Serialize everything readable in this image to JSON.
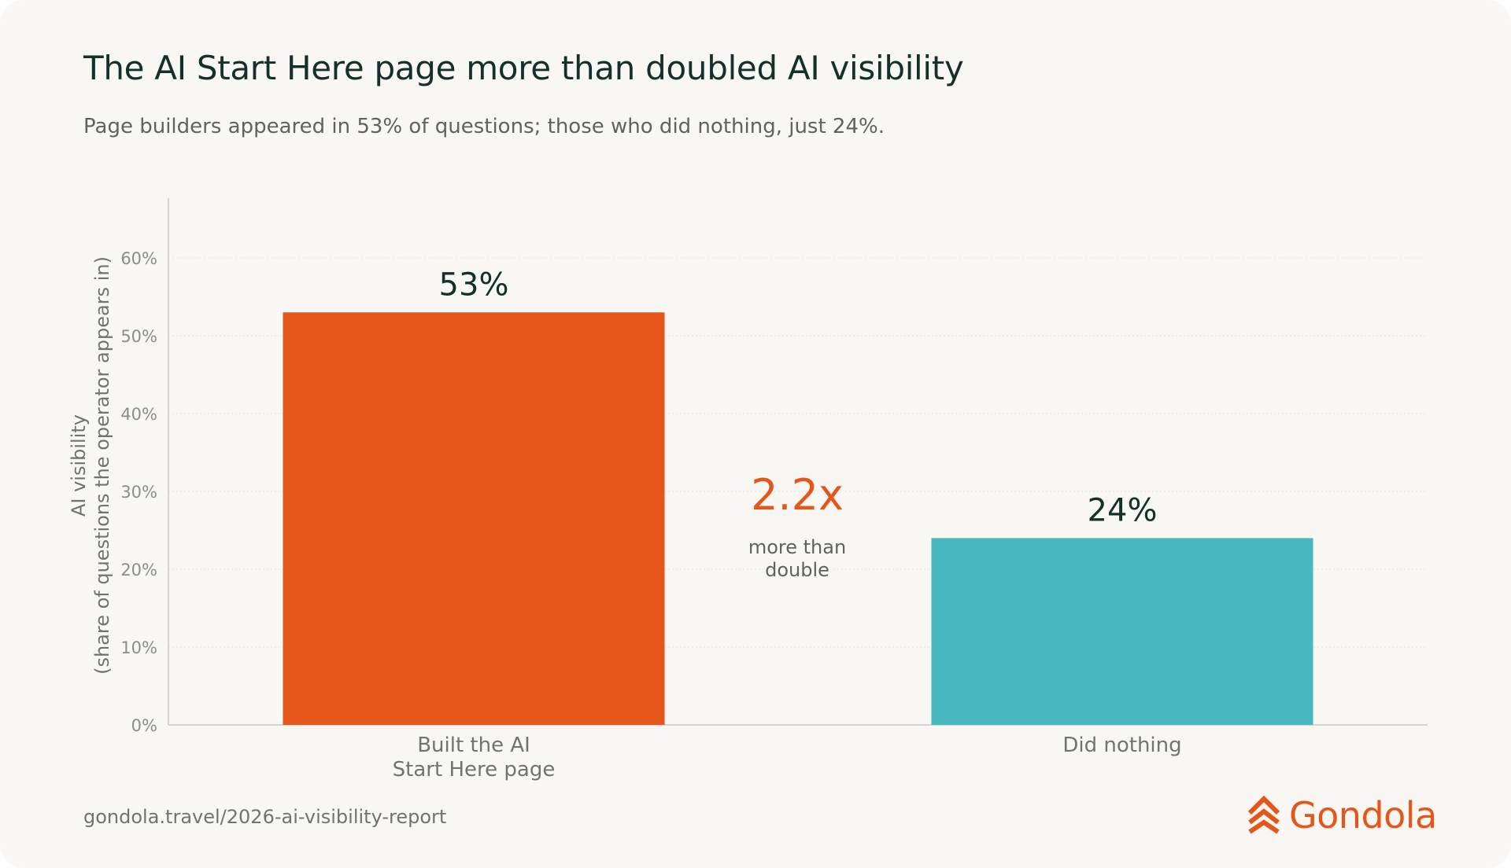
{
  "title": "The AI Start Here page more than doubled AI visibility",
  "subtitle": "Page builders appeared in 53% of questions; those who did nothing, just 24%.",
  "footer": {
    "url": "gondola.travel/2026-ai-visibility-report",
    "brand": "Gondola",
    "logo_icon": "gondola-chevrons-icon"
  },
  "chart_data": {
    "type": "bar",
    "ylabel_line1": "AI visibility",
    "ylabel_line2": "(share of questions the operator appears in)",
    "ylim": [
      0,
      60
    ],
    "yticks": [
      "0%",
      "10%",
      "20%",
      "30%",
      "40%",
      "50%",
      "60%"
    ],
    "grid": true,
    "categories": [
      {
        "label_lines": [
          "Built the AI",
          "Start Here page"
        ],
        "value": 53,
        "value_label": "53%",
        "color": "#e4561a"
      },
      {
        "label_lines": [
          "Did nothing"
        ],
        "value": 24,
        "value_label": "24%",
        "color": "#46b8be"
      }
    ],
    "annotation": {
      "value": "2.2x",
      "text_lines": [
        "more than",
        "double"
      ],
      "color": "#e4561a"
    }
  }
}
